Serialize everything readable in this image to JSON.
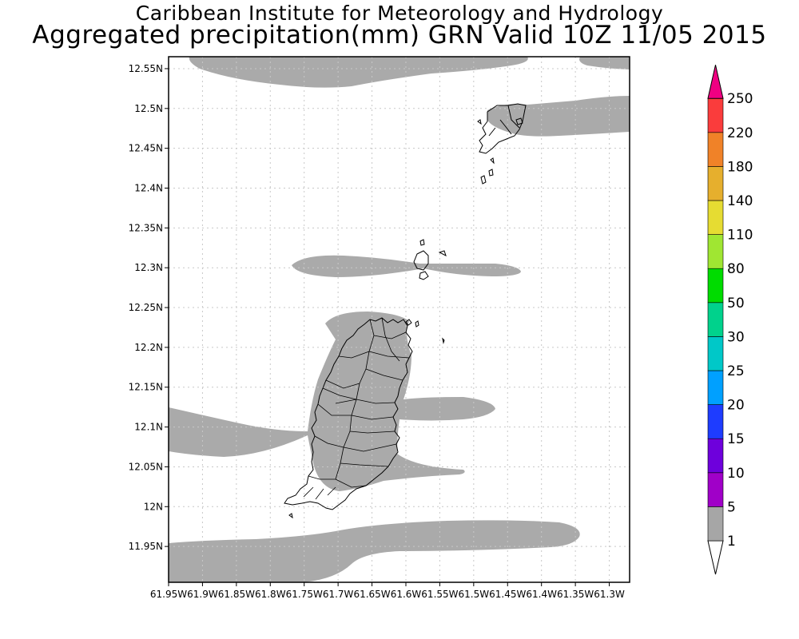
{
  "header": {
    "title": "Caribbean Institute for Meteorology and Hydrology",
    "subtitle": "Aggregated precipitation(mm) GRN Valid 10Z 11/05 2015"
  },
  "map": {
    "lon_range": [
      -61.95,
      -61.27
    ],
    "lat_range": [
      11.905,
      12.565
    ],
    "lat_ticks": [
      {
        "value": 12.55,
        "label": "12.55N"
      },
      {
        "value": 12.5,
        "label": "12.5N"
      },
      {
        "value": 12.45,
        "label": "12.45N"
      },
      {
        "value": 12.4,
        "label": "12.4N"
      },
      {
        "value": 12.35,
        "label": "12.35N"
      },
      {
        "value": 12.3,
        "label": "12.3N"
      },
      {
        "value": 12.25,
        "label": "12.25N"
      },
      {
        "value": 12.2,
        "label": "12.2N"
      },
      {
        "value": 12.15,
        "label": "12.15N"
      },
      {
        "value": 12.1,
        "label": "12.1N"
      },
      {
        "value": 12.05,
        "label": "12.05N"
      },
      {
        "value": 12.0,
        "label": "12N"
      },
      {
        "value": 11.95,
        "label": "11.95N"
      }
    ],
    "lon_ticks": [
      {
        "value": -61.95,
        "label": "61.95W"
      },
      {
        "value": -61.9,
        "label": "61.9W"
      },
      {
        "value": -61.85,
        "label": "61.85W"
      },
      {
        "value": -61.8,
        "label": "61.8W"
      },
      {
        "value": -61.75,
        "label": "61.75W"
      },
      {
        "value": -61.7,
        "label": "61.7W"
      },
      {
        "value": -61.65,
        "label": "61.65W"
      },
      {
        "value": -61.6,
        "label": "61.6W"
      },
      {
        "value": -61.55,
        "label": "61.55W"
      },
      {
        "value": -61.5,
        "label": "61.5W"
      },
      {
        "value": -61.45,
        "label": "61.45W"
      },
      {
        "value": -61.4,
        "label": "61.4W"
      },
      {
        "value": -61.35,
        "label": "61.35W"
      },
      {
        "value": -61.3,
        "label": "61.3W"
      }
    ],
    "grid": true,
    "grid_color": "#c8c8c8",
    "precip_fill_color": "#aaaaaa",
    "precip_bin": "1-5 mm"
  },
  "colorbar": {
    "levels": [
      {
        "label": "1",
        "color": "#ffffff"
      },
      {
        "label": "5",
        "color": "#a6a6a6"
      },
      {
        "label": "10",
        "color": "#a000c8"
      },
      {
        "label": "15",
        "color": "#6e00dc"
      },
      {
        "label": "20",
        "color": "#1e3cff"
      },
      {
        "label": "25",
        "color": "#00a0ff"
      },
      {
        "label": "30",
        "color": "#00c8c8"
      },
      {
        "label": "50",
        "color": "#00d28c"
      },
      {
        "label": "80",
        "color": "#00dc00"
      },
      {
        "label": "110",
        "color": "#a0e632"
      },
      {
        "label": "140",
        "color": "#e6dc32"
      },
      {
        "label": "180",
        "color": "#e6af2d"
      },
      {
        "label": "220",
        "color": "#f08228"
      },
      {
        "label": "250",
        "color": "#fa3c3c"
      }
    ],
    "top_color": "#f00082"
  }
}
